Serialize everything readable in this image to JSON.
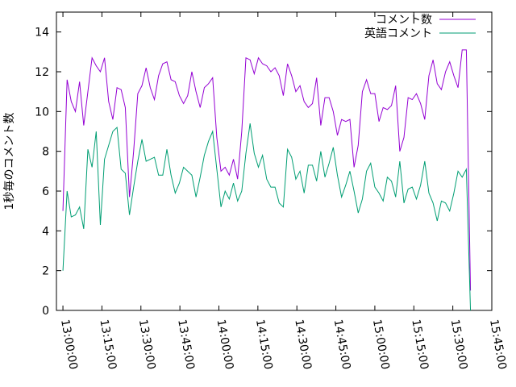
{
  "chart_data": {
    "type": "line",
    "ylabel": "1秒毎のコメント数",
    "x": [
      780,
      781.6,
      783.2,
      784.8,
      786.4,
      788,
      789.6,
      791.2,
      792.8,
      794.4,
      796,
      797.6,
      799.2,
      800.8,
      802.4,
      804,
      805.6,
      807.2,
      808.8,
      810.4,
      812,
      813.6,
      815.2,
      816.8,
      818.4,
      820,
      821.6,
      823.2,
      824.8,
      826.4,
      828,
      829.6,
      831.2,
      832.8,
      834.4,
      836,
      837.6,
      839.2,
      840.8,
      842.4,
      844,
      845.6,
      847.2,
      848.8,
      850.4,
      852,
      853.6,
      855.2,
      856.8,
      858.4,
      860,
      861.6,
      863.2,
      864.8,
      866.4,
      868,
      869.6,
      871.2,
      872.8,
      874.4,
      876,
      877.6,
      879.2,
      880.8,
      882.4,
      884,
      885.6,
      887.2,
      888.8,
      890.4,
      892,
      893.6,
      895.2,
      896.8,
      898.4,
      900,
      901.6,
      903.2,
      904.8,
      906.4,
      908,
      909.6,
      911.2,
      912.8,
      914.4,
      916,
      917.6,
      919.2,
      920.8,
      922.4,
      924,
      925.6,
      927.2,
      928.8,
      930.4,
      932,
      933.6,
      935.2,
      936.8
    ],
    "series": [
      {
        "name": "コメント数",
        "color": "#9400d3",
        "values": [
          5,
          11.6,
          10.5,
          10,
          11.5,
          9.3,
          11,
          12.7,
          12.3,
          12,
          12.7,
          10.5,
          9.6,
          11.2,
          11.1,
          10.2,
          5.7,
          8,
          10.9,
          11.3,
          12.2,
          11.2,
          10.6,
          11.8,
          12.4,
          12.5,
          11.6,
          11.5,
          10.8,
          10.4,
          10.8,
          12,
          11,
          10.2,
          11.2,
          11.4,
          11.7,
          8.7,
          7,
          7.2,
          6.8,
          7.6,
          6.6,
          9,
          12.7,
          12.6,
          11.9,
          12.7,
          12.4,
          12.3,
          12,
          12.2,
          11.8,
          10.8,
          12.4,
          11.8,
          11,
          11.3,
          10.5,
          10.2,
          10.4,
          11.7,
          9.3,
          10.7,
          10.7,
          10,
          8.8,
          9.6,
          9.5,
          9.6,
          7.2,
          8.3,
          11,
          11.6,
          10.9,
          10.9,
          9.5,
          10.2,
          10.1,
          10.3,
          11.3,
          8,
          8.7,
          10.7,
          10.6,
          10.9,
          10.4,
          9.6,
          11.8,
          12.6,
          11.4,
          11.1,
          12,
          12.5,
          11.8,
          11.2,
          13.1,
          13.1,
          1
        ]
      },
      {
        "name": "英語コメント",
        "color": "#009e73",
        "values": [
          2,
          6,
          4.7,
          4.8,
          5.2,
          4.1,
          8.1,
          7.2,
          9,
          4.3,
          7.6,
          8.3,
          9,
          9.2,
          7.1,
          6.9,
          4.8,
          6.2,
          7.5,
          8.6,
          7.5,
          7.6,
          7.7,
          6.8,
          6.8,
          8.1,
          6.8,
          5.9,
          6.4,
          7.2,
          7,
          6.8,
          5.7,
          6.7,
          7.8,
          8.5,
          9,
          7.1,
          5.2,
          6,
          5.6,
          6.4,
          5.5,
          6,
          7.9,
          9.4,
          7.9,
          7.2,
          7.8,
          6.6,
          6.2,
          6.2,
          5.4,
          5.2,
          8.1,
          7.7,
          6.6,
          7,
          5.9,
          7.3,
          7.3,
          6.5,
          8,
          6.7,
          7.4,
          8.2,
          6.8,
          5.7,
          6.3,
          7,
          6,
          4.9,
          5.6,
          7,
          7.4,
          6.2,
          5.9,
          5.5,
          6.7,
          6.5,
          5.7,
          7.5,
          5.4,
          6.1,
          6.2,
          5.6,
          6.3,
          7.5,
          5.9,
          5.4,
          4.5,
          5.5,
          5.4,
          5,
          5.9,
          7,
          6.7,
          7.1,
          0
        ]
      }
    ],
    "xlim": [
      777.5,
      945
    ],
    "xticks": [
      {
        "value": 780,
        "label": "13:00:00"
      },
      {
        "value": 795,
        "label": "13:15:00"
      },
      {
        "value": 810,
        "label": "13:30:00"
      },
      {
        "value": 825,
        "label": "13:45:00"
      },
      {
        "value": 840,
        "label": "14:00:00"
      },
      {
        "value": 855,
        "label": "14:15:00"
      },
      {
        "value": 870,
        "label": "14:30:00"
      },
      {
        "value": 885,
        "label": "14:45:00"
      },
      {
        "value": 900,
        "label": "15:00:00"
      },
      {
        "value": 915,
        "label": "15:15:00"
      },
      {
        "value": 930,
        "label": "15:30:00"
      },
      {
        "value": 945,
        "label": "15:45:00"
      }
    ],
    "ylim": [
      0,
      15
    ],
    "yticks": [
      0,
      2,
      4,
      6,
      8,
      10,
      12,
      14
    ],
    "legend": "top-right"
  }
}
